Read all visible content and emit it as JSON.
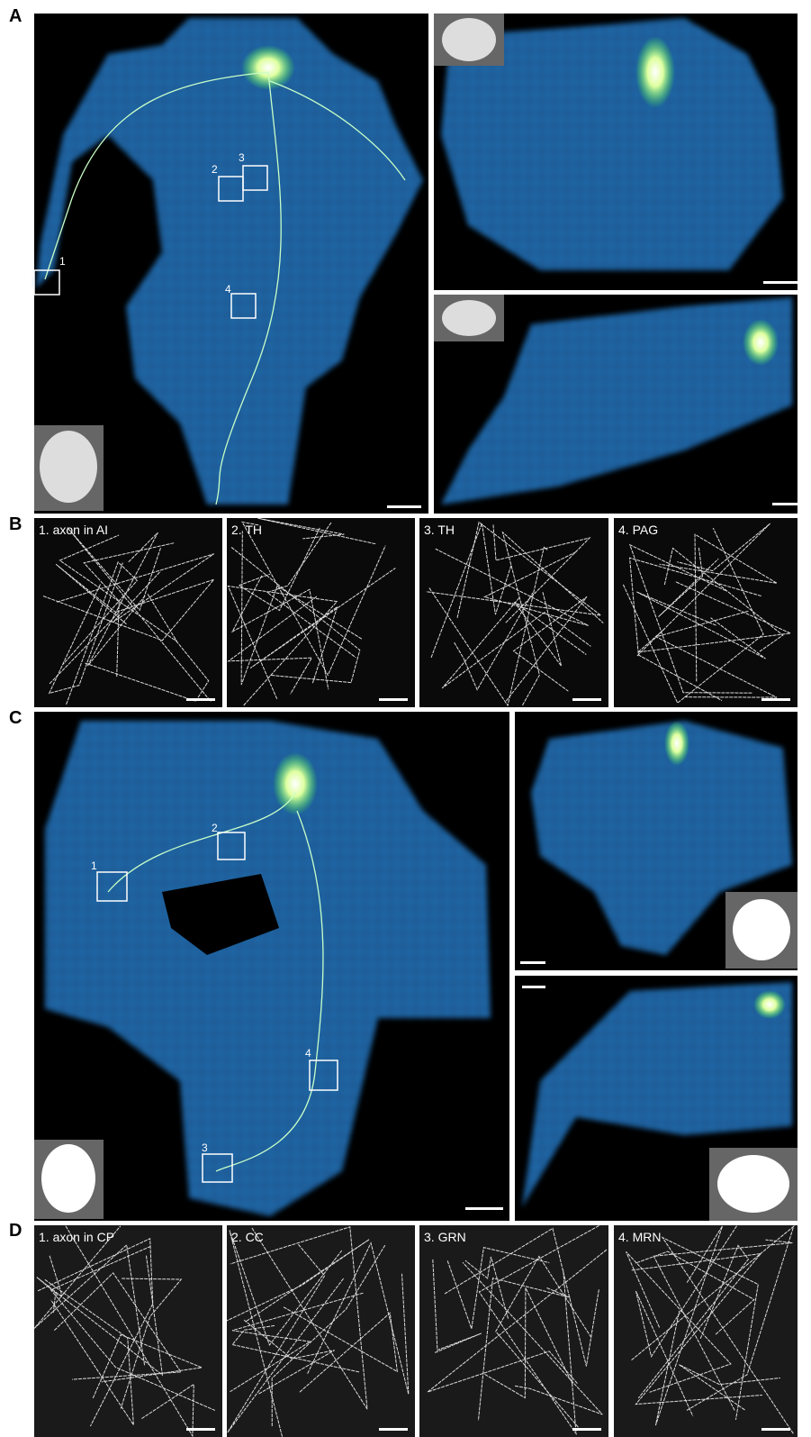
{
  "panels": [
    {
      "label": "A",
      "boxes": [
        "1",
        "2",
        "3",
        "4"
      ]
    },
    {
      "label": "B",
      "images": [
        "1. axon in AI",
        "2. TH",
        "3. TH",
        "4. PAG"
      ]
    },
    {
      "label": "C",
      "boxes": [
        "1",
        "2",
        "3",
        "4"
      ]
    },
    {
      "label": "D",
      "images": [
        "1. axon in CP",
        "2. CC",
        "3. GRN",
        "4. MRN"
      ]
    }
  ]
}
